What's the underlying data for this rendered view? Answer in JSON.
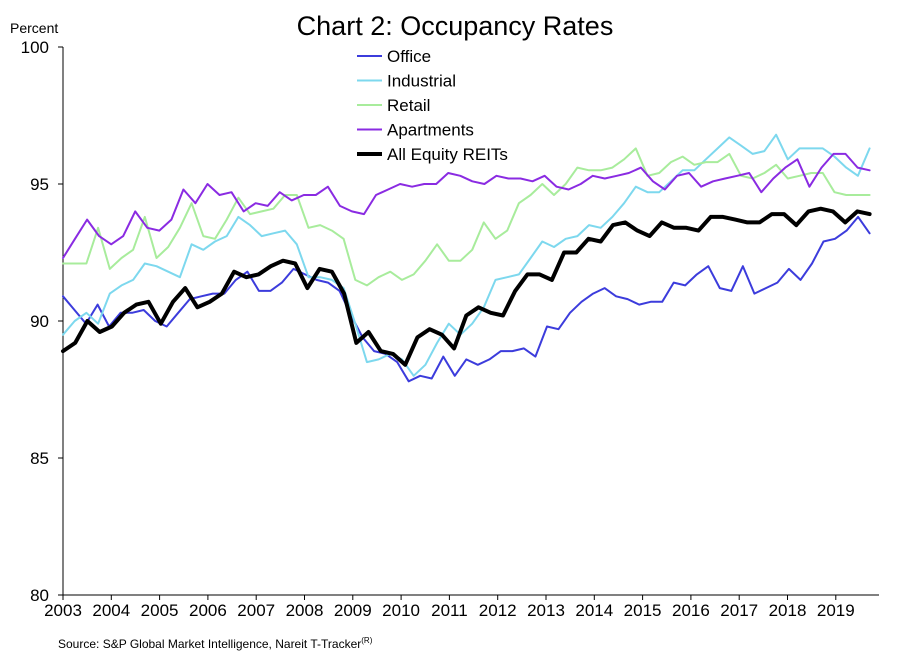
{
  "chart_data": {
    "type": "line",
    "title": "Chart 2: Occupancy Rates",
    "ylabel": "Percent",
    "xlabel": "",
    "ylim": [
      80,
      100
    ],
    "yticks": [
      "80",
      "85",
      "90",
      "95",
      "100"
    ],
    "x_start": 2003,
    "periods_per_year": 4,
    "x_tick_labels": [
      "2003",
      "2004",
      "2005",
      "2006",
      "2007",
      "2008",
      "2009",
      "2010",
      "2011",
      "2012",
      "2013",
      "2014",
      "2015",
      "2016",
      "2017",
      "2018",
      "2019"
    ],
    "grid": false,
    "legend_position": "top-center",
    "source": "Source: S&P Global Market Intelligence, Nareit T-Tracker",
    "source_sup": "(R)",
    "series": [
      {
        "name": "Office",
        "color": "#3c3cdc",
        "width": 2,
        "values": [
          90.9,
          90.4,
          89.9,
          90.6,
          89.8,
          90.3,
          90.3,
          90.4,
          90.0,
          89.8,
          90.3,
          90.8,
          90.9,
          91.0,
          91.0,
          91.5,
          91.8,
          91.1,
          91.1,
          91.4,
          91.9,
          91.7,
          91.5,
          91.4,
          91.1,
          90.2,
          89.4,
          88.9,
          88.8,
          88.5,
          87.8,
          88.0,
          87.9,
          88.7,
          88.0,
          88.6,
          88.4,
          88.6,
          88.9,
          88.9,
          89.0,
          88.7,
          89.8,
          89.7,
          90.3,
          90.7,
          91.0,
          91.2,
          90.9,
          90.8,
          90.6,
          90.7,
          90.7,
          91.4,
          91.3,
          91.7,
          92.0,
          91.2,
          91.1,
          92.0,
          91.0,
          91.2,
          91.4,
          91.9,
          91.5,
          92.1,
          92.9,
          93.0,
          93.3,
          93.8,
          93.2
        ]
      },
      {
        "name": "Industrial",
        "color": "#7dd8ee",
        "width": 2,
        "values": [
          89.5,
          90.0,
          90.3,
          89.9,
          91.0,
          91.3,
          91.5,
          92.1,
          92.0,
          91.8,
          91.6,
          92.8,
          92.6,
          92.9,
          93.1,
          93.8,
          93.5,
          93.1,
          93.2,
          93.3,
          92.8,
          91.6,
          91.6,
          91.5,
          91.2,
          89.9,
          88.5,
          88.6,
          88.8,
          88.6,
          88.0,
          88.4,
          89.2,
          89.9,
          89.5,
          89.9,
          90.5,
          91.5,
          91.6,
          91.7,
          92.3,
          92.9,
          92.7,
          93.0,
          93.1,
          93.5,
          93.4,
          93.8,
          94.3,
          94.9,
          94.7,
          94.7,
          95.1,
          95.5,
          95.5,
          95.9,
          96.3,
          96.7,
          96.4,
          96.1,
          96.2,
          96.8,
          95.9,
          96.3,
          96.3,
          96.3,
          96.0,
          95.6,
          95.3,
          96.3
        ]
      },
      {
        "name": "Retail",
        "color": "#a8ec9c",
        "width": 2,
        "values": [
          92.1,
          92.1,
          92.1,
          93.4,
          91.9,
          92.3,
          92.6,
          93.8,
          92.3,
          92.7,
          93.4,
          94.3,
          93.1,
          93.0,
          93.7,
          94.5,
          93.9,
          94.0,
          94.1,
          94.6,
          94.6,
          93.4,
          93.5,
          93.3,
          93.0,
          91.5,
          91.3,
          91.6,
          91.8,
          91.5,
          91.7,
          92.2,
          92.8,
          92.2,
          92.2,
          92.6,
          93.6,
          93.0,
          93.3,
          94.3,
          94.6,
          95.0,
          94.6,
          95.0,
          95.6,
          95.5,
          95.5,
          95.6,
          95.9,
          96.3,
          95.3,
          95.4,
          95.8,
          96.0,
          95.7,
          95.8,
          95.8,
          96.1,
          95.3,
          95.2,
          95.4,
          95.7,
          95.2,
          95.3,
          95.4,
          95.4,
          94.7,
          94.6,
          94.6,
          94.6
        ]
      },
      {
        "name": "Apartments",
        "color": "#8a2be2",
        "width": 2,
        "values": [
          92.3,
          93.0,
          93.7,
          93.1,
          92.8,
          93.1,
          94.0,
          93.4,
          93.3,
          93.7,
          94.8,
          94.3,
          95.0,
          94.6,
          94.7,
          94.0,
          94.3,
          94.2,
          94.7,
          94.4,
          94.6,
          94.6,
          94.9,
          94.2,
          94.0,
          93.9,
          94.6,
          94.8,
          95.0,
          94.9,
          95.0,
          95.0,
          95.4,
          95.3,
          95.1,
          95.0,
          95.3,
          95.2,
          95.2,
          95.1,
          95.3,
          94.9,
          94.8,
          95.0,
          95.3,
          95.2,
          95.3,
          95.4,
          95.6,
          95.1,
          94.8,
          95.3,
          95.4,
          94.9,
          95.1,
          95.2,
          95.3,
          95.4,
          94.7,
          95.2,
          95.6,
          95.9,
          94.9,
          95.6,
          96.1,
          96.1,
          95.6,
          95.5
        ]
      },
      {
        "name": "All Equity REITs",
        "color": "#000000",
        "width": 4,
        "values": [
          88.9,
          89.2,
          90.0,
          89.6,
          89.8,
          90.3,
          90.6,
          90.7,
          89.9,
          90.7,
          91.2,
          90.5,
          90.7,
          91.0,
          91.8,
          91.6,
          91.7,
          92.0,
          92.2,
          92.1,
          91.2,
          91.9,
          91.8,
          91.0,
          89.2,
          89.6,
          88.9,
          88.8,
          88.4,
          89.4,
          89.7,
          89.5,
          89.0,
          90.2,
          90.5,
          90.3,
          90.2,
          91.1,
          91.7,
          91.7,
          91.5,
          92.5,
          92.5,
          93.0,
          92.9,
          93.5,
          93.6,
          93.3,
          93.1,
          93.6,
          93.4,
          93.4,
          93.3,
          93.8,
          93.8,
          93.7,
          93.6,
          93.6,
          93.9,
          93.9,
          93.5,
          94.0,
          94.1,
          94.0,
          93.6,
          94.0,
          93.9
        ]
      }
    ]
  }
}
